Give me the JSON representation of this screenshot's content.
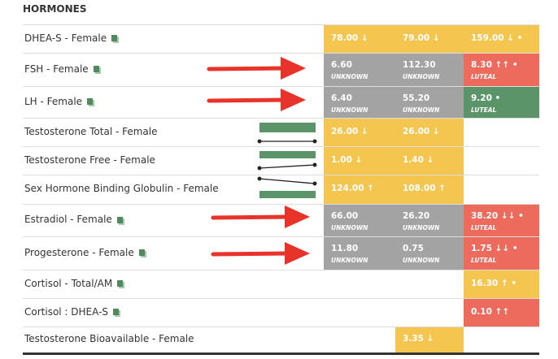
{
  "header": {
    "title": "HORMONES"
  },
  "rows": [
    {
      "name": "DHEA-S - Female",
      "icon": true,
      "cells": [
        {
          "text": "78.00 ↓",
          "color": "#f5c64f"
        },
        {
          "text": "79.00 ↓",
          "color": "#f5c64f"
        },
        {
          "text": "159.00 ↓ •",
          "color": "#f5c64f"
        }
      ]
    },
    {
      "name": "FSH - Female",
      "icon": true,
      "cells": [
        {
          "text": "6.60",
          "sub": "UNKNOWN",
          "color": "#a3a3a3"
        },
        {
          "text": "112.30",
          "sub": "UNKNOWN",
          "color": "#a3a3a3"
        },
        {
          "text": "8.30 ↑↑ •",
          "sub": "LUTEAL",
          "color": "#ec6b5d"
        }
      ]
    },
    {
      "name": "LH - Female",
      "icon": true,
      "cells": [
        {
          "text": "6.40",
          "sub": "UNKNOWN",
          "color": "#a3a3a3"
        },
        {
          "text": "55.20",
          "sub": "UNKNOWN",
          "color": "#a3a3a3"
        },
        {
          "text": "9.20 •",
          "sub": "LUTEAL",
          "color": "#5a9468"
        }
      ]
    },
    {
      "name": "Testosterone Total - Female",
      "icon": false,
      "cells": [
        {
          "text": "26.00 ↓",
          "color": "#f5c64f"
        },
        {
          "text": "26.00 ↓",
          "color": "#f5c64f"
        },
        null
      ]
    },
    {
      "name": "Testosterone Free - Female",
      "icon": false,
      "cells": [
        {
          "text": "1.00 ↓",
          "color": "#f5c64f"
        },
        {
          "text": "1.40 ↓",
          "color": "#f5c64f"
        },
        null
      ]
    },
    {
      "name": "Sex Hormone Binding Globulin - Female",
      "icon": false,
      "cells": [
        {
          "text": "124.00 ↑",
          "color": "#f5c64f"
        },
        {
          "text": "108.00 ↑",
          "color": "#f5c64f"
        },
        null
      ]
    },
    {
      "name": "Estradiol - Female",
      "icon": true,
      "cells": [
        {
          "text": "66.00",
          "sub": "UNKNOWN",
          "color": "#a3a3a3"
        },
        {
          "text": "26.20",
          "sub": "UNKNOWN",
          "color": "#a3a3a3"
        },
        {
          "text": "38.20 ↓↓ •",
          "sub": "LUTEAL",
          "color": "#ec6b5d"
        }
      ]
    },
    {
      "name": "Progesterone - Female",
      "icon": true,
      "cells": [
        {
          "text": "11.80",
          "sub": "UNKNOWN",
          "color": "#a3a3a3"
        },
        {
          "text": "0.75",
          "sub": "UNKNOWN",
          "color": "#a3a3a3"
        },
        {
          "text": "1.75 ↓↓ •",
          "sub": "LUTEAL",
          "color": "#ec6b5d"
        }
      ]
    },
    {
      "name": "Cortisol - Total/AM",
      "icon": true,
      "cells": [
        null,
        null,
        {
          "text": "16.30 ↑ •",
          "color": "#f5c64f"
        }
      ]
    },
    {
      "name": "Cortisol : DHEA-S",
      "icon": true,
      "cells": [
        null,
        null,
        {
          "text": "0.10 ↑↑",
          "color": "#ec6b5d"
        }
      ]
    },
    {
      "name": "Testosterone Bioavailable - Female",
      "icon": false,
      "cells": [
        null,
        {
          "text": "3.35 ↓",
          "color": "#f5c64f"
        },
        null
      ]
    }
  ]
}
